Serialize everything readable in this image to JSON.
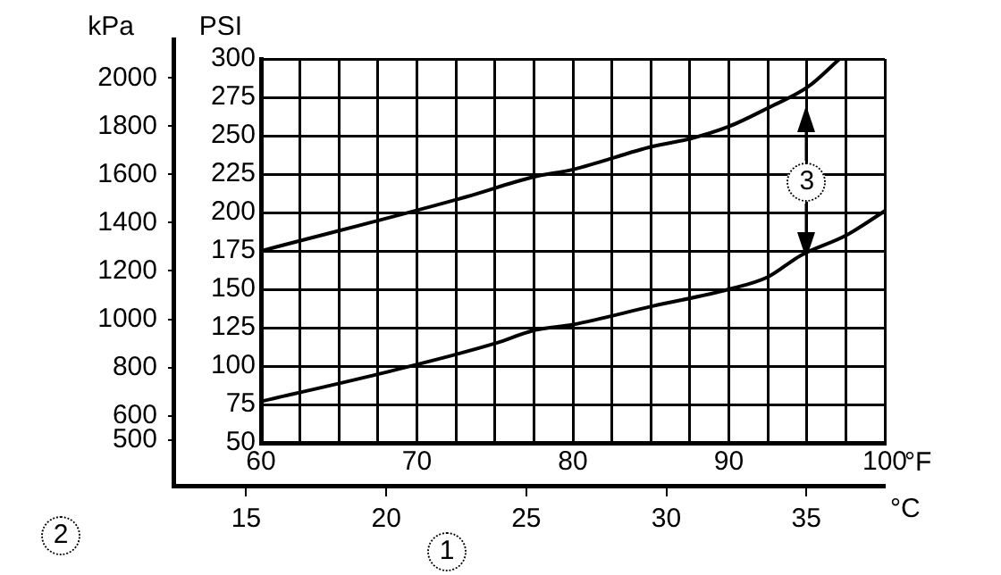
{
  "chart_data": {
    "type": "line",
    "ylabel": "PSI",
    "y2label": "kPa",
    "xlabel": "°F",
    "x2label": "°C",
    "x": [
      60,
      67.6,
      75.1,
      77.4,
      80,
      85.1,
      90,
      92.5,
      94.6,
      97.5,
      100
    ],
    "series": [
      {
        "color": "#000000",
        "x": [
          60,
          73.1,
          77.4,
          80,
          85.1,
          87.5,
          90,
          92.5,
          95.1,
          97.1
        ],
        "values": [
          175,
          210,
          223,
          228,
          243,
          248,
          256,
          268,
          282,
          300
        ]
      },
      {
        "color": "#000000",
        "values": [
          77,
          95,
          115,
          123,
          127,
          139,
          150,
          158,
          172,
          185,
          201
        ]
      }
    ],
    "xlim": [
      60,
      100
    ],
    "xticks": [
      60,
      {
        "value": 62.5,
        "label": null
      },
      {
        "value": 65,
        "label": null
      },
      {
        "value": 67.5,
        "label": null
      },
      70,
      {
        "value": 72.5,
        "label": null
      },
      {
        "value": 75,
        "label": null
      },
      {
        "value": 77.5,
        "label": null
      },
      80,
      {
        "value": 82.5,
        "label": null
      },
      {
        "value": 85,
        "label": null
      },
      {
        "value": 87.5,
        "label": null
      },
      90,
      {
        "value": 92.5,
        "label": null
      },
      {
        "value": 95,
        "label": null
      },
      {
        "value": 97.5,
        "label": null
      },
      100
    ],
    "ylim": [
      50,
      300
    ],
    "yticks": [
      50,
      75,
      100,
      125,
      150,
      175,
      200,
      225,
      250,
      275,
      300
    ],
    "y2lim": [
      310,
      2160
    ],
    "y2ticks": [
      500,
      600,
      800,
      1000,
      1200,
      1400,
      1600,
      1800,
      2000
    ],
    "x2lim": [
      12.4,
      37.8
    ],
    "x2ticks": [
      15,
      20,
      25,
      30,
      35
    ],
    "grid": true,
    "marker": "none",
    "line_style": "solid",
    "legend": false,
    "annotations": [
      "2",
      "1",
      {
        "text": "3",
        "x": 95,
        "y": 220
      }
    ]
  }
}
